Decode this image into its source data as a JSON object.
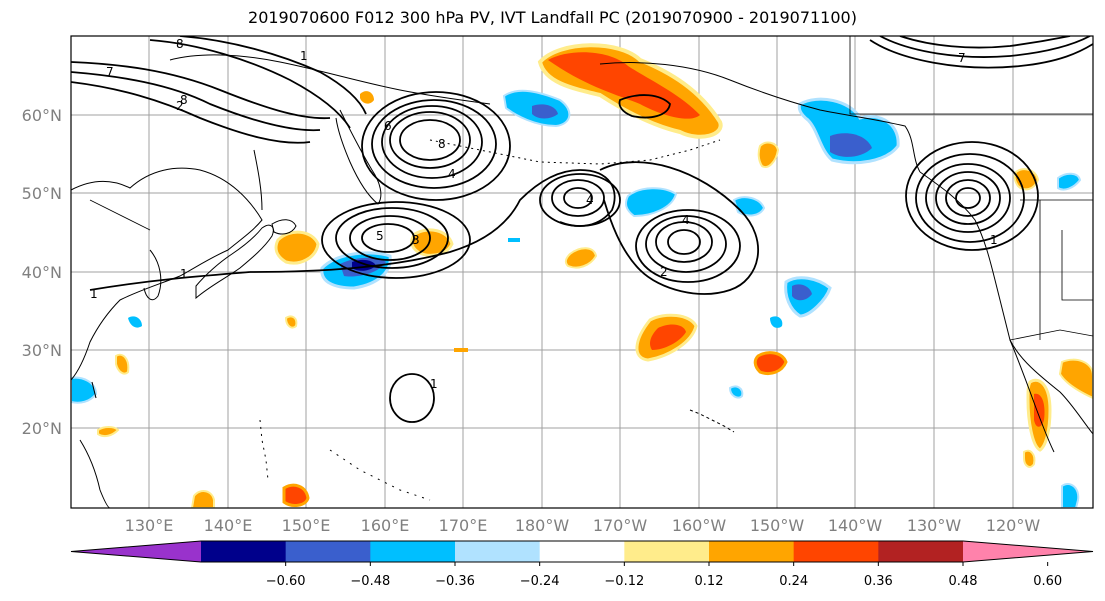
{
  "title": "2019070600 F012 300 hPa PV, IVT Landfall PC (2019070900 - 2019071100)",
  "latitude_labels": [
    "60°N",
    "50°N",
    "40°N",
    "30°N",
    "20°N"
  ],
  "longitude_labels": [
    "130°E",
    "140°E",
    "150°E",
    "160°E",
    "170°E",
    "180°W",
    "170°W",
    "160°W",
    "150°W",
    "140°W",
    "130°W",
    "120°W"
  ],
  "colorbar": {
    "ticks": [
      "−0.60",
      "−0.48",
      "−0.36",
      "−0.24",
      "−0.12",
      "0.12",
      "0.24",
      "0.36",
      "0.48",
      "0.60"
    ],
    "colors": [
      "#9932CC",
      "#00008B",
      "#3A5FCD",
      "#00BFFF",
      "#B0E2FF",
      "#FFFFFF",
      "#FFEC8B",
      "#FFA500",
      "#FF4500",
      "#B22222",
      "#FF82AB"
    ]
  },
  "contour_labels": [
    "1",
    "2",
    "3",
    "4",
    "5",
    "6",
    "7",
    "8"
  ]
}
